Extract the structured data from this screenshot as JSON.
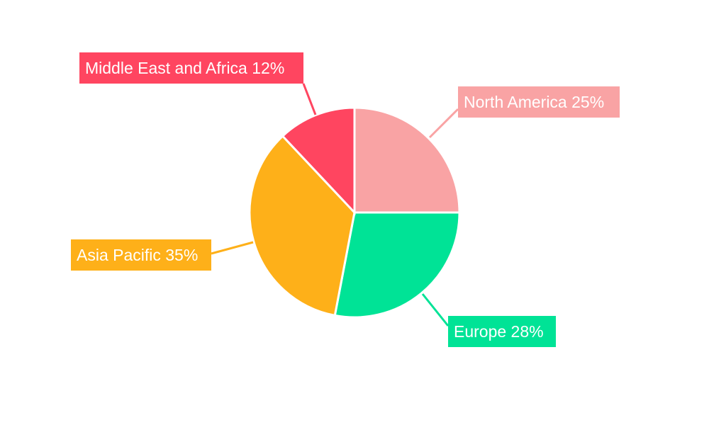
{
  "chart_data": {
    "type": "pie",
    "title": "",
    "start_angle": "12 o'clock, clockwise",
    "legend": "none",
    "slices": [
      {
        "label": "North America",
        "value": 25,
        "display": "North America 25%",
        "color": "#F9A3A4"
      },
      {
        "label": "Europe",
        "value": 28,
        "display": "Europe 28%",
        "color": "#00E396"
      },
      {
        "label": "Asia Pacific",
        "value": 35,
        "display": "Asia Pacific 35%",
        "color": "#FEB019"
      },
      {
        "label": "Middle East and Africa",
        "value": 12,
        "display": "Middle East and Africa 12%",
        "color": "#FF4560"
      }
    ]
  }
}
